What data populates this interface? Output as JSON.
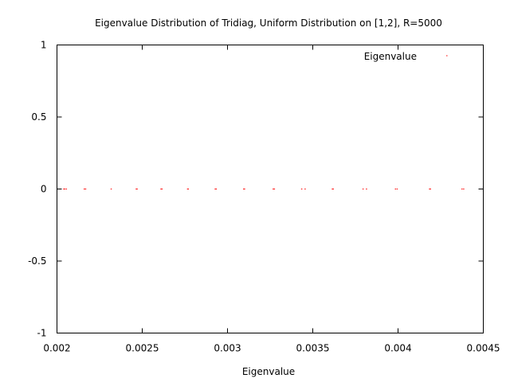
{
  "chart_data": {
    "type": "scatter",
    "title": "Eigenvalue Distribution of Tridiag, Uniform Distribution on [1,2], R=5000",
    "xlabel": "Eigenvalue",
    "ylabel": "",
    "xlim": [
      0.002,
      0.0045
    ],
    "ylim": [
      -1,
      1
    ],
    "x_ticks": [
      "0.002",
      "0.0025",
      "0.003",
      "0.0035",
      "0.004",
      "0.0045"
    ],
    "y_ticks": [
      "1",
      "0.5",
      "0",
      "-0.5",
      "-1"
    ],
    "grid": false,
    "legend_position": "top-right",
    "series": [
      {
        "name": "Eigenvalue",
        "color": "#ff0000",
        "x": [
          0.00204,
          0.002045,
          0.002055,
          0.00216,
          0.002168,
          0.002318,
          0.002465,
          0.00247,
          0.00261,
          0.002616,
          0.002766,
          0.00277,
          0.002928,
          0.002934,
          0.003095,
          0.0031,
          0.003268,
          0.003275,
          0.003435,
          0.003455,
          0.003615,
          0.00362,
          0.003795,
          0.003815,
          0.003985,
          0.003995,
          0.004185,
          0.00419,
          0.004375,
          0.004385
        ],
        "y": [
          0,
          0,
          0,
          0,
          0,
          0,
          0,
          0,
          0,
          0,
          0,
          0,
          0,
          0,
          0,
          0,
          0,
          0,
          0,
          0,
          0,
          0,
          0,
          0,
          0,
          0,
          0,
          0,
          0,
          0
        ]
      }
    ]
  }
}
